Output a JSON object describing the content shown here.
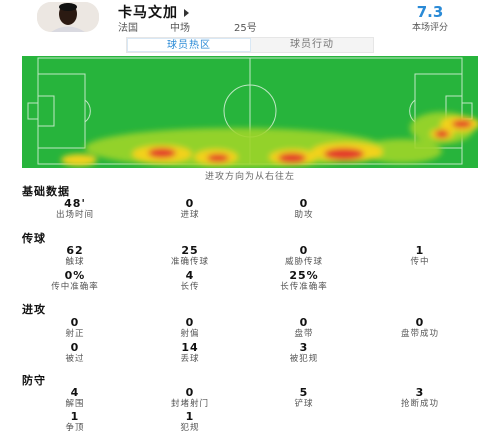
{
  "player": {
    "name": "卡马文加",
    "country": "法国",
    "position": "中场",
    "number": "25号",
    "rating": "7.3",
    "rating_label": "本场评分"
  },
  "tabs": [
    {
      "label": "球员热区",
      "active": true
    },
    {
      "label": "球员行动",
      "active": false
    }
  ],
  "heatmap_hint": "进攻方向为从右往左",
  "sections": {
    "basic": {
      "title": "基础数据",
      "stats": [
        {
          "value": "48'",
          "label": "出场时间"
        },
        {
          "value": "0",
          "label": "进球"
        },
        {
          "value": "0",
          "label": "助攻"
        }
      ]
    },
    "passing": {
      "title": "传球",
      "stats": [
        {
          "value": "62",
          "label": "触球"
        },
        {
          "value": "25",
          "label": "准确传球"
        },
        {
          "value": "0",
          "label": "威胁传球"
        },
        {
          "value": "1",
          "label": "传中"
        },
        {
          "value": "0%",
          "label": "传中准确率"
        },
        {
          "value": "4",
          "label": "长传"
        },
        {
          "value": "25%",
          "label": "长传准确率"
        }
      ]
    },
    "attack": {
      "title": "进攻",
      "stats": [
        {
          "value": "0",
          "label": "射正"
        },
        {
          "value": "0",
          "label": "射偏"
        },
        {
          "value": "0",
          "label": "盘带"
        },
        {
          "value": "0",
          "label": "盘带成功"
        },
        {
          "value": "0",
          "label": "被过"
        },
        {
          "value": "14",
          "label": "丢球"
        },
        {
          "value": "3",
          "label": "被犯规"
        }
      ]
    },
    "defense": {
      "title": "防守",
      "stats": [
        {
          "value": "4",
          "label": "解围"
        },
        {
          "value": "0",
          "label": "封堵射门"
        },
        {
          "value": "5",
          "label": "铲球"
        },
        {
          "value": "3",
          "label": "抢断成功"
        },
        {
          "value": "1",
          "label": "争顶"
        },
        {
          "value": "1",
          "label": "犯规"
        }
      ]
    }
  },
  "colors": {
    "accent": "#2a8ad6",
    "pitch": "#27b43c",
    "heat_low": "#9fd52a",
    "heat_mid": "#f2d21b",
    "heat_high": "#e3382a"
  }
}
